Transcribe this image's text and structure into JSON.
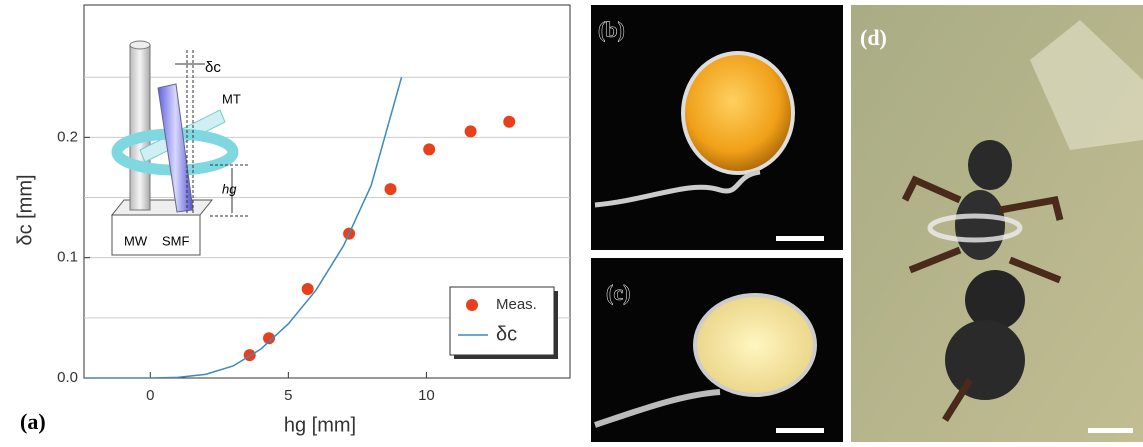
{
  "chart_data": {
    "type": "scatter",
    "xlabel": "hg [mm]",
    "ylabel": "δc  [mm]",
    "xlim": [
      -2.4,
      15.2
    ],
    "ylim": [
      0,
      0.31
    ],
    "xticks": [
      0,
      5,
      10
    ],
    "yticks": [
      {
        "value": 0,
        "label": "0.0"
      },
      0.1,
      0.2
    ],
    "yminor": [
      0.05,
      0.15,
      0.25
    ],
    "grid": true,
    "legend": "lower right",
    "series": [
      {
        "name": "Meas.",
        "type": "scatter",
        "color": "#e8401c",
        "x": [
          3.6,
          4.3,
          5.7,
          7.2,
          8.7,
          10.1,
          11.6,
          13.0
        ],
        "values": [
          0.019,
          0.033,
          0.074,
          0.12,
          0.157,
          0.19,
          0.205,
          0.213
        ]
      },
      {
        "name": "δc",
        "type": "line",
        "color": "#3a8bbf",
        "x": [
          -2.4,
          0,
          1,
          2,
          3,
          4,
          5,
          6,
          7,
          8,
          9.1
        ],
        "values": [
          0,
          0,
          0.0005,
          0.003,
          0.01,
          0.024,
          0.045,
          0.073,
          0.11,
          0.16,
          0.25
        ]
      }
    ]
  },
  "inset": {
    "delta": "δc",
    "mt": "MT",
    "hg": "hg",
    "mw": "MW",
    "smf": "SMF"
  },
  "panels": {
    "a": "(a)",
    "b": "(b)",
    "c": "(c)",
    "d": "(d)"
  }
}
